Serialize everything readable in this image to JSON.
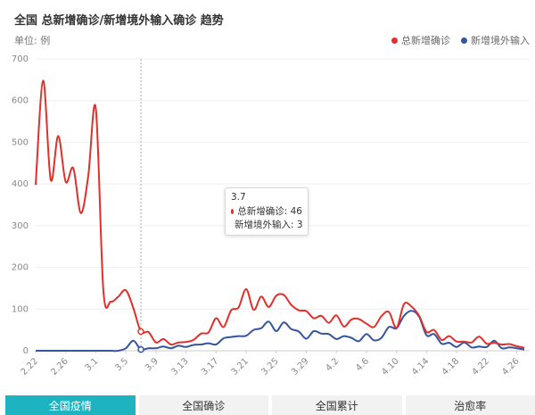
{
  "chart_data": {
    "type": "line",
    "title": "全国 总新增确诊/新增境外输入确诊 趋势",
    "unit_label": "单位: 例",
    "ylim": [
      0,
      700
    ],
    "y_ticks": [
      "0",
      "100",
      "200",
      "300",
      "400",
      "500",
      "600",
      "700"
    ],
    "x_tick_labels": [
      "2.22",
      "2.26",
      "3.1",
      "3.5",
      "3.9",
      "3.13",
      "3.17",
      "3.21",
      "3.25",
      "3.29",
      "4.2",
      "4.6",
      "4.10",
      "4.14",
      "4.18",
      "4.22",
      "4.26"
    ],
    "categories": [
      "2.22",
      "2.23",
      "2.24",
      "2.25",
      "2.26",
      "2.27",
      "2.28",
      "2.29",
      "3.1",
      "3.2",
      "3.3",
      "3.4",
      "3.5",
      "3.6",
      "3.7",
      "3.8",
      "3.9",
      "3.10",
      "3.11",
      "3.12",
      "3.13",
      "3.14",
      "3.15",
      "3.16",
      "3.17",
      "3.18",
      "3.19",
      "3.20",
      "3.21",
      "3.22",
      "3.23",
      "3.24",
      "3.25",
      "3.26",
      "3.27",
      "3.28",
      "3.29",
      "3.30",
      "3.31",
      "4.1",
      "4.2",
      "4.3",
      "4.4",
      "4.5",
      "4.6",
      "4.7",
      "4.8",
      "4.9",
      "4.10",
      "4.11",
      "4.12",
      "4.13",
      "4.14",
      "4.15",
      "4.16",
      "4.17",
      "4.18",
      "4.19",
      "4.20",
      "4.21",
      "4.22",
      "4.23",
      "4.24",
      "4.25",
      "4.26",
      "4.27"
    ],
    "grid": true,
    "legend_position": "top-right",
    "series": [
      {
        "name": "总新增确诊",
        "color": "#e1302b",
        "values": [
          398,
          648,
          410,
          515,
          405,
          438,
          330,
          420,
          582,
          145,
          118,
          130,
          145,
          102,
          46,
          45,
          20,
          28,
          15,
          20,
          21,
          26,
          41,
          44,
          78,
          57,
          97,
          104,
          148,
          98,
          130,
          105,
          132,
          134,
          110,
          97,
          95,
          78,
          84,
          67,
          85,
          58,
          75,
          76,
          65,
          57,
          83,
          93,
          55,
          112,
          106,
          84,
          45,
          50,
          26,
          35,
          22,
          22,
          20,
          34,
          17,
          19,
          15,
          16,
          11,
          7
        ],
        "tooltip_value": "46"
      },
      {
        "name": "新增境外输入",
        "color": "#34559d",
        "values": [
          0,
          0,
          0,
          0,
          0,
          0,
          0,
          0,
          0,
          0,
          0,
          0,
          6,
          24,
          3,
          6,
          6,
          10,
          6,
          12,
          9,
          14,
          15,
          18,
          15,
          30,
          33,
          35,
          36,
          50,
          54,
          70,
          47,
          68,
          52,
          46,
          29,
          47,
          41,
          40,
          28,
          35,
          31,
          23,
          40,
          25,
          31,
          57,
          54,
          84,
          96,
          82,
          37,
          40,
          17,
          19,
          9,
          20,
          8,
          10,
          9,
          24,
          6,
          8,
          6,
          3
        ],
        "tooltip_value": "3"
      }
    ]
  },
  "tooltip": {
    "date": "3.7",
    "rows": [
      {
        "label": "总新增确诊: 46",
        "color": "#e1302b"
      },
      {
        "label": "新增境外输入: 3",
        "color": "#34559d"
      }
    ]
  },
  "tabs": [
    {
      "label": "全国疫情",
      "active": true
    },
    {
      "label": "全国确诊",
      "active": false
    },
    {
      "label": "全国累计",
      "active": false
    },
    {
      "label": "治愈率",
      "active": false
    }
  ]
}
